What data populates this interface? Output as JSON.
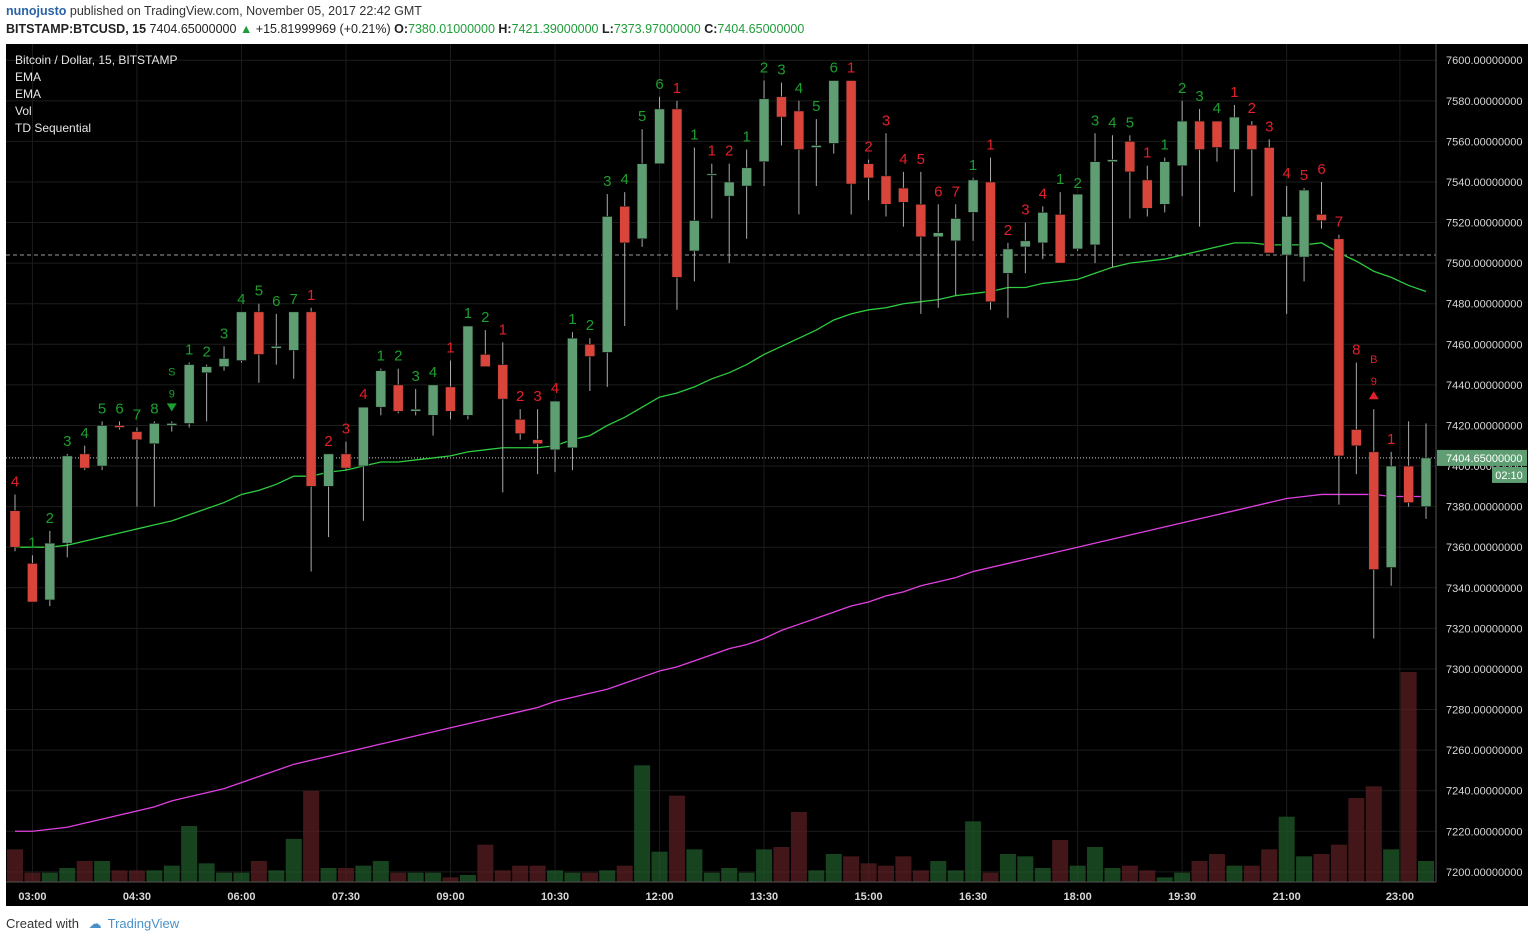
{
  "header": {
    "user": "nunojusto",
    "published": "published on TradingView.com, November 05, 2017 22:42 GMT",
    "symbol": "BITSTAMP:BTCUSD, 15",
    "price": "7404.65000000",
    "change": "+15.81999969 (+0.21%)",
    "o_label": "O:",
    "o_value": "7380.01000000",
    "h_label": "H:",
    "h_value": "7421.39000000",
    "l_label": "L:",
    "l_value": "7373.97000000",
    "c_label": "C:",
    "c_value": "7404.65000000"
  },
  "legend": {
    "title": "Bitcoin / Dollar, 15, BITSTAMP",
    "items": [
      "EMA",
      "EMA",
      "Vol",
      "TD Sequential"
    ]
  },
  "footer": {
    "created": "Created with",
    "brand": "TradingView"
  },
  "colors": {
    "up": "#5e9e72",
    "down": "#d9453b",
    "ema_fast": "#2ecc40",
    "ema_slow": "#e040e0",
    "td_up": "#1e9e2e",
    "td_down": "#e0202a",
    "bg": "#000000"
  },
  "chart_data": {
    "type": "candlestick",
    "interval_minutes": 15,
    "start_time": "02:45",
    "ylim": [
      7195,
      7608
    ],
    "y_ticks": [
      7200,
      7220,
      7240,
      7260,
      7280,
      7300,
      7320,
      7340,
      7360,
      7380,
      7400,
      7420,
      7440,
      7460,
      7480,
      7500,
      7520,
      7540,
      7560,
      7580,
      7600
    ],
    "y_tick_labels": [
      "7200.00000000",
      "7220.00000000",
      "7240.00000000",
      "7260.00000000",
      "7280.00000000",
      "7300.00000000",
      "7320.00000000",
      "7340.00000000",
      "7360.00000000",
      "7380.00000000",
      "7400.00000000",
      "7420.00000000",
      "7440.00000000",
      "7460.00000000",
      "7480.00000000",
      "7500.00000000",
      "7520.00000000",
      "7540.00000000",
      "7560.00000000",
      "7580.00000000",
      "7600.00000000"
    ],
    "x_tick_labels": [
      "03:00",
      "04:30",
      "06:00",
      "07:30",
      "09:00",
      "10:30",
      "12:00",
      "13:30",
      "15:00",
      "16:30",
      "18:00",
      "19:30",
      "21:00",
      "23:00"
    ],
    "x_tick_bars": [
      1,
      7,
      13,
      19,
      25,
      31,
      37,
      43,
      49,
      55,
      61,
      67,
      73,
      79.5
    ],
    "current_price_label": "7404.65000000",
    "countdown_label": "02:10",
    "dashed_level": 7504,
    "candles": [
      [
        7378,
        7386,
        7358,
        7360
      ],
      [
        7352,
        7356,
        7333,
        7333
      ],
      [
        7334,
        7368,
        7331,
        7362
      ],
      [
        7362,
        7406,
        7355,
        7405
      ],
      [
        7406,
        7410,
        7398,
        7399
      ],
      [
        7400,
        7422,
        7398,
        7420
      ],
      [
        7420,
        7422,
        7418,
        7419
      ],
      [
        7417,
        7419,
        7380,
        7413
      ],
      [
        7411,
        7422,
        7380,
        7421
      ],
      [
        7420,
        7422,
        7417,
        7421
      ],
      [
        7421,
        7451,
        7419,
        7450
      ],
      [
        7446,
        7450,
        7422,
        7449
      ],
      [
        7449,
        7459,
        7447,
        7453
      ],
      [
        7452,
        7476,
        7451,
        7476
      ],
      [
        7476,
        7480,
        7441,
        7455
      ],
      [
        7458,
        7475,
        7450,
        7459
      ],
      [
        7457,
        7476,
        7443,
        7476
      ],
      [
        7476,
        7478,
        7348,
        7390
      ],
      [
        7390,
        7406,
        7365,
        7406
      ],
      [
        7406,
        7412,
        7398,
        7399
      ],
      [
        7400,
        7429,
        7373,
        7429
      ],
      [
        7429,
        7448,
        7425,
        7447
      ],
      [
        7440,
        7448,
        7426,
        7427
      ],
      [
        7427,
        7438,
        7425,
        7428
      ],
      [
        7425,
        7440,
        7415,
        7440
      ],
      [
        7439,
        7452,
        7423,
        7427
      ],
      [
        7425,
        7469,
        7423,
        7469
      ],
      [
        7455,
        7467,
        7449,
        7449
      ],
      [
        7450,
        7461,
        7387,
        7433
      ],
      [
        7423,
        7428,
        7413,
        7416
      ],
      [
        7413,
        7428,
        7396,
        7411
      ],
      [
        7408,
        7432,
        7397,
        7432
      ],
      [
        7409,
        7466,
        7398,
        7463
      ],
      [
        7460,
        7463,
        7437,
        7454
      ],
      [
        7456,
        7534,
        7439,
        7523
      ],
      [
        7528,
        7535,
        7469,
        7510
      ],
      [
        7512,
        7566,
        7508,
        7549
      ],
      [
        7549,
        7582,
        7550,
        7576
      ],
      [
        7576,
        7580,
        7477,
        7493
      ],
      [
        7506,
        7557,
        7491,
        7521
      ],
      [
        7544,
        7549,
        7522,
        7544
      ],
      [
        7533,
        7549,
        7500,
        7540
      ],
      [
        7538,
        7556,
        7512,
        7547
      ],
      [
        7550,
        7590,
        7538,
        7581
      ],
      [
        7582,
        7589,
        7558,
        7572
      ],
      [
        7575,
        7580,
        7524,
        7556
      ],
      [
        7557,
        7571,
        7538,
        7558
      ],
      [
        7559,
        7590,
        7554,
        7590
      ],
      [
        7590,
        7590,
        7524,
        7539
      ],
      [
        7549,
        7551,
        7531,
        7542
      ],
      [
        7543,
        7564,
        7523,
        7529
      ],
      [
        7537,
        7545,
        7518,
        7530
      ],
      [
        7529,
        7545,
        7475,
        7513
      ],
      [
        7513,
        7529,
        7478,
        7515
      ],
      [
        7511,
        7529,
        7484,
        7522
      ],
      [
        7525,
        7542,
        7511,
        7541
      ],
      [
        7540,
        7552,
        7477,
        7481
      ],
      [
        7495,
        7510,
        7473,
        7507
      ],
      [
        7508,
        7520,
        7495,
        7511
      ],
      [
        7510,
        7528,
        7502,
        7525
      ],
      [
        7524,
        7535,
        7502,
        7500
      ],
      [
        7507,
        7533,
        7506,
        7534
      ],
      [
        7509,
        7564,
        7500,
        7550
      ],
      [
        7550,
        7563,
        7498,
        7551
      ],
      [
        7560,
        7563,
        7522,
        7545
      ],
      [
        7541,
        7548,
        7523,
        7527
      ],
      [
        7529,
        7552,
        7525,
        7550
      ],
      [
        7548,
        7580,
        7533,
        7570
      ],
      [
        7570,
        7576,
        7518,
        7556
      ],
      [
        7570,
        7570,
        7550,
        7557
      ],
      [
        7556,
        7578,
        7535,
        7572
      ],
      [
        7568,
        7570,
        7533,
        7556
      ],
      [
        7557,
        7561,
        7507,
        7505
      ],
      [
        7504,
        7538,
        7475,
        7523
      ],
      [
        7503,
        7537,
        7491,
        7536
      ],
      [
        7524,
        7540,
        7517,
        7521
      ],
      [
        7512,
        7514,
        7381,
        7405
      ],
      [
        7418,
        7451,
        7396,
        7410
      ],
      [
        7407,
        7428,
        7315,
        7349
      ],
      [
        7350,
        7407,
        7341,
        7400
      ],
      [
        7400,
        7422,
        7380,
        7382
      ],
      [
        7380,
        7421,
        7374,
        7404
      ]
    ],
    "volume": [
      28,
      8,
      8,
      12,
      18,
      18,
      10,
      10,
      10,
      14,
      48,
      16,
      8,
      8,
      18,
      10,
      37,
      78,
      12,
      12,
      14,
      18,
      8,
      8,
      8,
      4,
      6,
      32,
      10,
      14,
      14,
      10,
      8,
      8,
      10,
      14,
      100,
      26,
      74,
      28,
      8,
      12,
      8,
      28,
      30,
      60,
      10,
      24,
      22,
      16,
      14,
      22,
      10,
      18,
      10,
      52,
      8,
      24,
      22,
      12,
      36,
      14,
      30,
      12,
      14,
      10,
      4,
      8,
      18,
      24,
      14,
      14,
      28,
      56,
      22,
      24,
      32,
      72,
      82,
      28,
      180,
      18
    ],
    "ema_fast": [
      7360,
      7360,
      7360,
      7361,
      7363,
      7365,
      7367,
      7369,
      7371,
      7373,
      7376,
      7379,
      7382,
      7386,
      7388,
      7391,
      7395,
      7395,
      7397,
      7398,
      7400,
      7402,
      7402,
      7403,
      7404,
      7405,
      7407,
      7408,
      7409,
      7409,
      7409,
      7410,
      7413,
      7415,
      7420,
      7424,
      7429,
      7434,
      7436,
      7439,
      7443,
      7446,
      7450,
      7455,
      7459,
      7463,
      7467,
      7472,
      7475,
      7477,
      7478,
      7480,
      7481,
      7482,
      7484,
      7485,
      7486,
      7488,
      7488,
      7490,
      7491,
      7492,
      7495,
      7498,
      7500,
      7501,
      7502,
      7504,
      7506,
      7508,
      7510,
      7510,
      7509,
      7509,
      7509,
      7510,
      7505,
      7501,
      7496,
      7493,
      7489,
      7486
    ],
    "ema_slow": [
      7220,
      7220,
      7221,
      7222,
      7224,
      7226,
      7228,
      7230,
      7232,
      7235,
      7237,
      7239,
      7241,
      7244,
      7247,
      7250,
      7253,
      7255,
      7257,
      7259,
      7261,
      7263,
      7265,
      7267,
      7269,
      7271,
      7273,
      7275,
      7277,
      7279,
      7281,
      7284,
      7286,
      7288,
      7290,
      7293,
      7296,
      7299,
      7301,
      7304,
      7307,
      7310,
      7312,
      7315,
      7319,
      7322,
      7325,
      7328,
      7331,
      7333,
      7336,
      7338,
      7341,
      7343,
      7345,
      7348,
      7350,
      7352,
      7354,
      7356,
      7358,
      7360,
      7362,
      7364,
      7366,
      7368,
      7370,
      7372,
      7374,
      7376,
      7378,
      7380,
      7382,
      7384,
      7385,
      7386,
      7386,
      7386,
      7386,
      7385,
      7385,
      7385
    ],
    "td_labels": [
      {
        "bar": 0,
        "text": "4",
        "side": "down"
      },
      {
        "bar": 1,
        "text": "1",
        "side": "up"
      },
      {
        "bar": 2,
        "text": "2",
        "side": "up"
      },
      {
        "bar": 3,
        "text": "3",
        "side": "up"
      },
      {
        "bar": 4,
        "text": "4",
        "side": "up"
      },
      {
        "bar": 5,
        "text": "5",
        "side": "up"
      },
      {
        "bar": 6,
        "text": "6",
        "side": "up"
      },
      {
        "bar": 7,
        "text": "7",
        "side": "up"
      },
      {
        "bar": 8,
        "text": "8",
        "side": "up"
      },
      {
        "bar": 9,
        "text": "9",
        "side": "up"
      },
      {
        "bar": 9,
        "text": "S",
        "side": "up"
      },
      {
        "bar": 10,
        "text": "1",
        "side": "up"
      },
      {
        "bar": 11,
        "text": "2",
        "side": "up"
      },
      {
        "bar": 12,
        "text": "3",
        "side": "up"
      },
      {
        "bar": 13,
        "text": "4",
        "side": "up"
      },
      {
        "bar": 14,
        "text": "5",
        "side": "up"
      },
      {
        "bar": 15,
        "text": "6",
        "side": "up"
      },
      {
        "bar": 16,
        "text": "7",
        "side": "up"
      },
      {
        "bar": 17,
        "text": "1",
        "side": "down"
      },
      {
        "bar": 18,
        "text": "2",
        "side": "down"
      },
      {
        "bar": 19,
        "text": "3",
        "side": "down"
      },
      {
        "bar": 20,
        "text": "4",
        "side": "down"
      },
      {
        "bar": 21,
        "text": "1",
        "side": "up"
      },
      {
        "bar": 22,
        "text": "2",
        "side": "up"
      },
      {
        "bar": 23,
        "text": "3",
        "side": "up"
      },
      {
        "bar": 24,
        "text": "4",
        "side": "up"
      },
      {
        "bar": 25,
        "text": "1",
        "side": "down"
      },
      {
        "bar": 26,
        "text": "1",
        "side": "up"
      },
      {
        "bar": 27,
        "text": "2",
        "side": "up"
      },
      {
        "bar": 28,
        "text": "1",
        "side": "down"
      },
      {
        "bar": 29,
        "text": "2",
        "side": "down"
      },
      {
        "bar": 30,
        "text": "3",
        "side": "down"
      },
      {
        "bar": 31,
        "text": "4",
        "side": "down"
      },
      {
        "bar": 32,
        "text": "1",
        "side": "up"
      },
      {
        "bar": 33,
        "text": "2",
        "side": "up"
      },
      {
        "bar": 34,
        "text": "3",
        "side": "up"
      },
      {
        "bar": 35,
        "text": "4",
        "side": "up"
      },
      {
        "bar": 36,
        "text": "5",
        "side": "up"
      },
      {
        "bar": 37,
        "text": "6",
        "side": "up"
      },
      {
        "bar": 38,
        "text": "1",
        "side": "down"
      },
      {
        "bar": 39,
        "text": "1",
        "side": "up"
      },
      {
        "bar": 40,
        "text": "1",
        "side": "down"
      },
      {
        "bar": 41,
        "text": "2",
        "side": "down"
      },
      {
        "bar": 42,
        "text": "1",
        "side": "up"
      },
      {
        "bar": 43,
        "text": "2",
        "side": "up"
      },
      {
        "bar": 44,
        "text": "3",
        "side": "up"
      },
      {
        "bar": 45,
        "text": "4",
        "side": "up"
      },
      {
        "bar": 46,
        "text": "5",
        "side": "up"
      },
      {
        "bar": 47,
        "text": "6",
        "side": "up"
      },
      {
        "bar": 48,
        "text": "1",
        "side": "down"
      },
      {
        "bar": 49,
        "text": "2",
        "side": "down"
      },
      {
        "bar": 50,
        "text": "3",
        "side": "down"
      },
      {
        "bar": 51,
        "text": "4",
        "side": "down"
      },
      {
        "bar": 52,
        "text": "5",
        "side": "down"
      },
      {
        "bar": 53,
        "text": "6",
        "side": "down"
      },
      {
        "bar": 54,
        "text": "7",
        "side": "down"
      },
      {
        "bar": 55,
        "text": "1",
        "side": "up"
      },
      {
        "bar": 56,
        "text": "1",
        "side": "down"
      },
      {
        "bar": 57,
        "text": "2",
        "side": "down"
      },
      {
        "bar": 58,
        "text": "3",
        "side": "down"
      },
      {
        "bar": 59,
        "text": "4",
        "side": "down"
      },
      {
        "bar": 60,
        "text": "1",
        "side": "up"
      },
      {
        "bar": 61,
        "text": "2",
        "side": "up"
      },
      {
        "bar": 62,
        "text": "3",
        "side": "up"
      },
      {
        "bar": 63,
        "text": "4",
        "side": "up"
      },
      {
        "bar": 64,
        "text": "5",
        "side": "up"
      },
      {
        "bar": 65,
        "text": "1",
        "side": "down"
      },
      {
        "bar": 66,
        "text": "1",
        "side": "up"
      },
      {
        "bar": 67,
        "text": "2",
        "side": "up"
      },
      {
        "bar": 68,
        "text": "3",
        "side": "up"
      },
      {
        "bar": 69,
        "text": "4",
        "side": "up"
      },
      {
        "bar": 70,
        "text": "1",
        "side": "down"
      },
      {
        "bar": 71,
        "text": "2",
        "side": "down"
      },
      {
        "bar": 72,
        "text": "3",
        "side": "down"
      },
      {
        "bar": 73,
        "text": "4",
        "side": "down"
      },
      {
        "bar": 74,
        "text": "5",
        "side": "down"
      },
      {
        "bar": 75,
        "text": "6",
        "side": "down"
      },
      {
        "bar": 76,
        "text": "7",
        "side": "down"
      },
      {
        "bar": 77,
        "text": "8",
        "side": "down"
      },
      {
        "bar": 78,
        "text": "9",
        "side": "down"
      },
      {
        "bar": 78,
        "text": "B",
        "side": "down"
      },
      {
        "bar": 79,
        "text": "1",
        "side": "down"
      }
    ],
    "td_positions_hint": "labels drawn above candle highs",
    "arrows": [
      {
        "bar": 9,
        "dir": "down",
        "color": "td_up"
      },
      {
        "bar": 78,
        "dir": "up",
        "color": "td_down"
      }
    ]
  }
}
